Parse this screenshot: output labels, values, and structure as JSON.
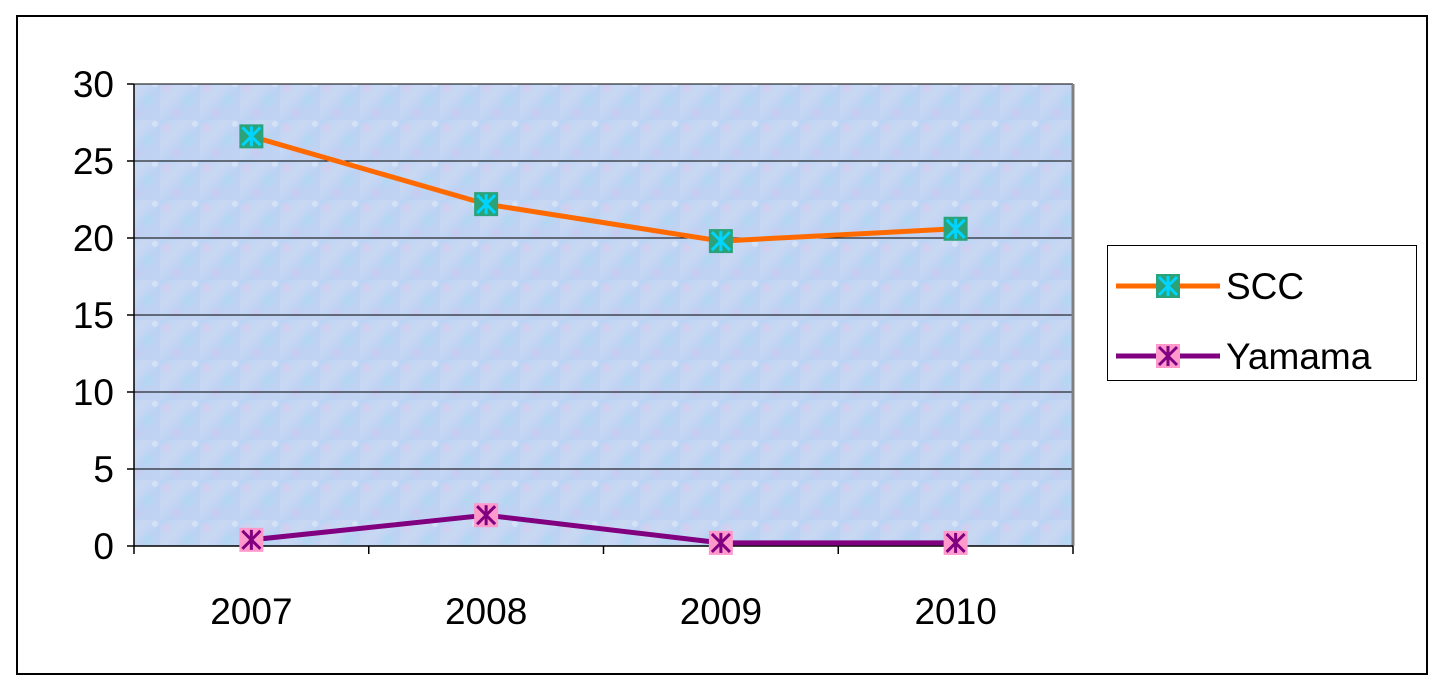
{
  "chart_data": {
    "type": "line",
    "categories": [
      "2007",
      "2008",
      "2009",
      "2010"
    ],
    "ylim": [
      0,
      30
    ],
    "yticks": [
      0,
      5,
      10,
      15,
      20,
      25,
      30
    ],
    "grid": true,
    "legend_position": "right",
    "series": [
      {
        "name": "SCC",
        "values": [
          26.6,
          22.2,
          19.8,
          20.6
        ],
        "color": "#ff6a00",
        "marker_fill": "#2aa37a",
        "marker_symbol": "#00d4ff"
      },
      {
        "name": "Yamama",
        "values": [
          0.4,
          2.0,
          0.2,
          0.2
        ],
        "color": "#800080",
        "marker_fill": "#ff99cc",
        "marker_symbol": "#800080"
      }
    ]
  }
}
